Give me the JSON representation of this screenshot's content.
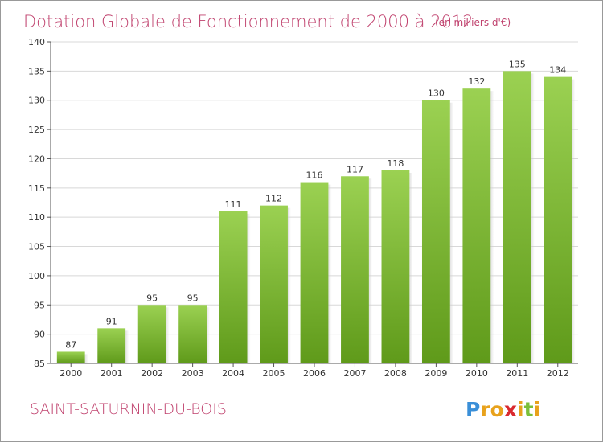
{
  "chart_data": {
    "type": "bar",
    "title": "Dotation Globale de Fonctionnement de 2000 à 2012",
    "subtitle": "(en milliers d'€)",
    "categories": [
      "2000",
      "2001",
      "2002",
      "2003",
      "2004",
      "2005",
      "2006",
      "2007",
      "2008",
      "2009",
      "2010",
      "2011",
      "2012"
    ],
    "values": [
      87,
      91,
      95,
      95,
      111,
      112,
      116,
      117,
      118,
      130,
      132,
      135,
      134
    ],
    "data_labels": [
      "87",
      "91",
      "95",
      "95",
      "111",
      "112",
      "116",
      "117",
      "118",
      "130",
      "132",
      "135",
      "134"
    ],
    "ylim": [
      85,
      140
    ],
    "yticks": [
      85,
      90,
      95,
      100,
      105,
      110,
      115,
      120,
      125,
      130,
      135,
      140
    ],
    "ytick_labels": [
      "85",
      "90",
      "95",
      "100",
      "105",
      "110",
      "115",
      "120",
      "125",
      "130",
      "135",
      "140"
    ],
    "grid": true,
    "bar_color_top": "#9bd152",
    "bar_color_bottom": "#5f9a1a"
  },
  "footer": {
    "location": "SAINT-SATURNIN-DU-BOIS",
    "brand_letters": [
      "P",
      "r",
      "o",
      "x",
      "i",
      "t",
      "i"
    ],
    "brand_colors": [
      "#3a8fd8",
      "#e8a21c",
      "#e8a21c",
      "#d9292f",
      "#e8a21c",
      "#7bbf3a",
      "#e8a21c"
    ]
  }
}
